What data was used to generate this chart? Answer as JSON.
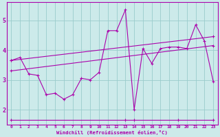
{
  "xlabel": "Windchill (Refroidissement éolien,°C)",
  "bg_color": "#cceaea",
  "line_color": "#aa00aa",
  "grid_color": "#99cccc",
  "xlim": [
    -0.5,
    23.5
  ],
  "ylim": [
    1.5,
    5.6
  ],
  "xticks": [
    0,
    1,
    2,
    3,
    4,
    5,
    6,
    7,
    8,
    9,
    10,
    11,
    12,
    13,
    14,
    15,
    16,
    17,
    18,
    19,
    20,
    21,
    22,
    23
  ],
  "yticks": [
    2,
    3,
    4,
    5
  ],
  "series_main_x": [
    0,
    1,
    2,
    3,
    4,
    5,
    6,
    7,
    8,
    9,
    10,
    11,
    12,
    13,
    14,
    15,
    16,
    17,
    18,
    19,
    20,
    21,
    22,
    23
  ],
  "series_main_y": [
    3.65,
    3.75,
    3.2,
    3.15,
    2.5,
    2.55,
    2.35,
    2.5,
    3.05,
    3.0,
    3.25,
    4.65,
    4.65,
    5.35,
    2.0,
    4.05,
    3.55,
    4.05,
    4.1,
    4.1,
    4.05,
    4.85,
    4.3,
    2.95
  ],
  "series_flat_x": [
    0,
    13,
    14,
    19,
    23
  ],
  "series_flat_y": [
    1.65,
    1.65,
    1.65,
    1.65,
    1.65
  ],
  "series_trend1_x": [
    0,
    23
  ],
  "series_trend1_y": [
    3.65,
    4.45
  ],
  "series_trend2_x": [
    0,
    23
  ],
  "series_trend2_y": [
    3.3,
    4.15
  ]
}
